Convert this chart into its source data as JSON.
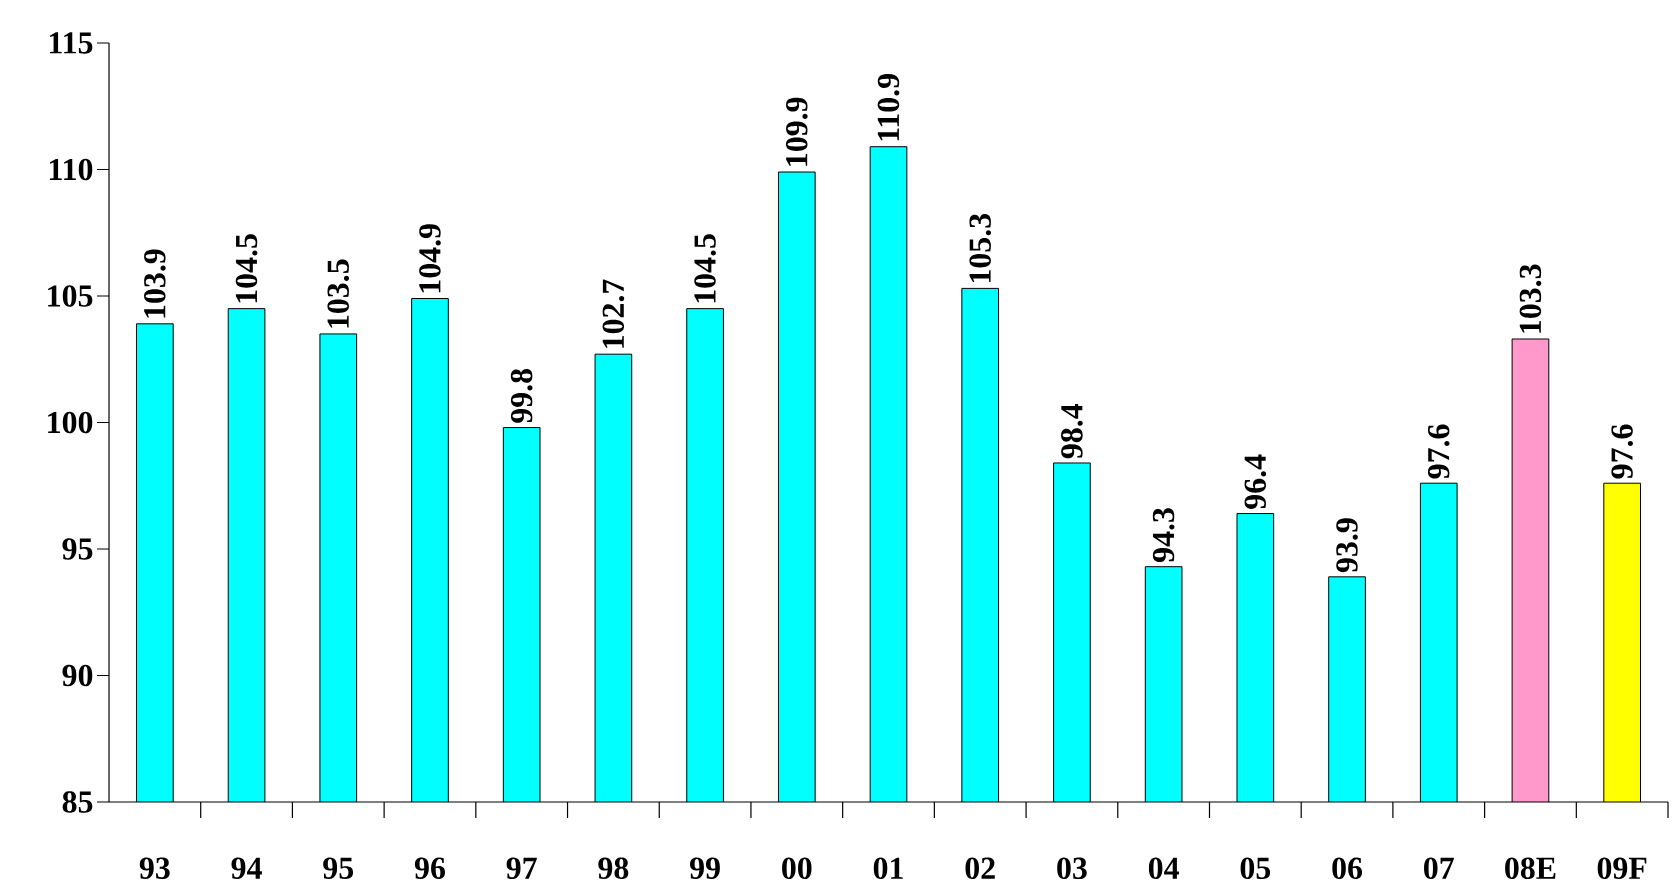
{
  "chart_data": {
    "type": "bar",
    "categories": [
      "93",
      "94",
      "95",
      "96",
      "97",
      "98",
      "99",
      "00",
      "01",
      "02",
      "03",
      "04",
      "05",
      "06",
      "07",
      "08E",
      "09F"
    ],
    "values": [
      103.9,
      104.5,
      103.5,
      104.9,
      99.8,
      102.7,
      104.5,
      109.9,
      110.9,
      105.3,
      98.4,
      94.3,
      96.4,
      93.9,
      97.6,
      103.3,
      97.6
    ],
    "colors": [
      "#00ffff",
      "#00ffff",
      "#00ffff",
      "#00ffff",
      "#00ffff",
      "#00ffff",
      "#00ffff",
      "#00ffff",
      "#00ffff",
      "#00ffff",
      "#00ffff",
      "#00ffff",
      "#00ffff",
      "#00ffff",
      "#00ffff",
      "#ff99cc",
      "#ffff00"
    ],
    "ylim": [
      85,
      115
    ],
    "yticks": [
      85,
      90,
      95,
      100,
      105,
      110,
      115
    ],
    "data_labels": true,
    "grid": false
  }
}
